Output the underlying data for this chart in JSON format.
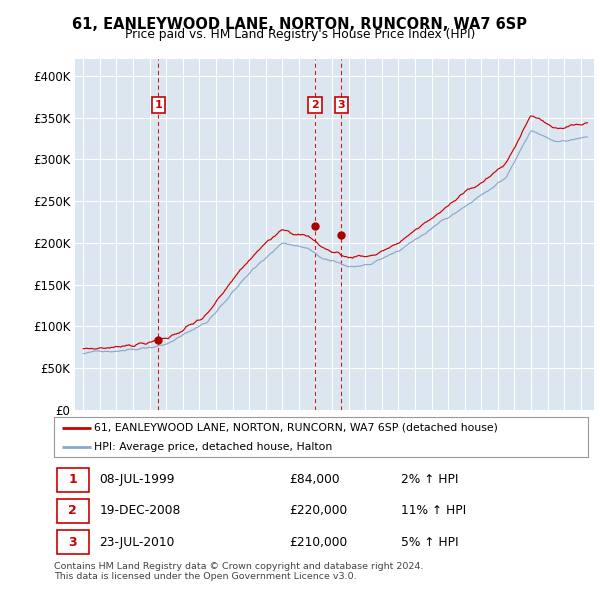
{
  "title1": "61, EANLEYWOOD LANE, NORTON, RUNCORN, WA7 6SP",
  "title2": "Price paid vs. HM Land Registry's House Price Index (HPI)",
  "line1_color": "#cc0000",
  "line2_color": "#88aacc",
  "ylim": [
    0,
    420000
  ],
  "yticks": [
    0,
    50000,
    100000,
    150000,
    200000,
    250000,
    300000,
    350000,
    400000
  ],
  "ytick_labels": [
    "£0",
    "£50K",
    "£100K",
    "£150K",
    "£200K",
    "£250K",
    "£300K",
    "£350K",
    "£400K"
  ],
  "sales": [
    {
      "date": 1999.52,
      "price": 84000,
      "label": "1"
    },
    {
      "date": 2008.97,
      "price": 220000,
      "label": "2"
    },
    {
      "date": 2010.56,
      "price": 210000,
      "label": "3"
    }
  ],
  "legend_line1": "61, EANLEYWOOD LANE, NORTON, RUNCORN, WA7 6SP (detached house)",
  "legend_line2": "HPI: Average price, detached house, Halton",
  "table_data": [
    [
      "1",
      "08-JUL-1999",
      "£84,000",
      "2% ↑ HPI"
    ],
    [
      "2",
      "19-DEC-2008",
      "£220,000",
      "11% ↑ HPI"
    ],
    [
      "3",
      "23-JUL-2010",
      "£210,000",
      "5% ↑ HPI"
    ]
  ],
  "footer": "Contains HM Land Registry data © Crown copyright and database right 2024.\nThis data is licensed under the Open Government Licence v3.0."
}
